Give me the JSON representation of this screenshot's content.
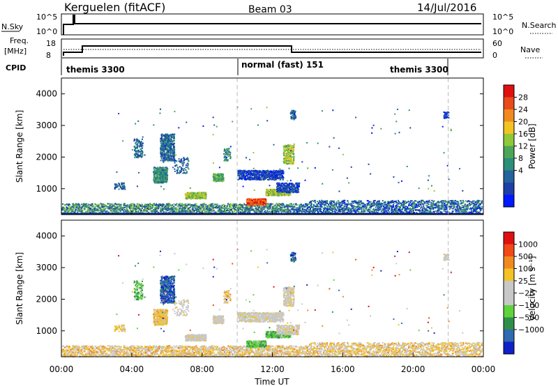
{
  "header": {
    "station": "Kerguelen (fitACF)",
    "beam": "Beam 03",
    "date": "14/Jul/2016"
  },
  "colors": {
    "power_scale": [
      "#0019ff",
      "#1f3fa8",
      "#24639b",
      "#2b8f7a",
      "#4da55a",
      "#8fc93a",
      "#f3c323",
      "#f08a20",
      "#e94b1b",
      "#e01010"
    ],
    "velocity_scale": [
      "#e01010",
      "#f04a18",
      "#f08a20",
      "#f3c323",
      "#c8c8c8",
      "#c8c8c8",
      "#5fd43a",
      "#2f8f4a",
      "#2e6ab0",
      "#1020c8"
    ],
    "dashed_line": "#bbbbbb"
  },
  "panels": {
    "nsky_label": "N.Sky",
    "nsky_ticks": [
      "10^5",
      "10^0"
    ],
    "nsearch_label": "N.Search",
    "nsearch_ticks": [
      "10^5",
      "10^0"
    ],
    "freq_label": "Freq.",
    "freq_unit": "[MHz]",
    "freq_ticks": [
      "18",
      "8"
    ],
    "nave_label": "Nave",
    "nave_ticks": [
      "60",
      "0"
    ],
    "cpid_label": "CPID",
    "cpid_segments": [
      "themis 3300",
      "normal (fast) 151",
      "themis 3300"
    ]
  },
  "chart_data": [
    {
      "type": "heatmap",
      "name": "power",
      "ylabel": "Slant Range [km]",
      "yticks": [
        1000,
        2000,
        3000,
        4000
      ],
      "ylim": [
        180,
        4500
      ],
      "xlim": [
        0,
        24
      ],
      "xticks": [
        "00:00",
        "04:00",
        "08:00",
        "12:00",
        "16:00",
        "20:00",
        "00:00"
      ],
      "colorbar_label": "Power [dB]",
      "colorbar_ticks": [
        "28",
        "24",
        "20",
        "16",
        "12",
        "8",
        "4"
      ],
      "colorbar_range": [
        0,
        30
      ],
      "dashed_times": [
        10,
        22
      ]
    },
    {
      "type": "heatmap",
      "name": "velocity",
      "ylabel": "Slant Range [km]",
      "yticks": [
        1000,
        2000,
        3000,
        4000
      ],
      "ylim": [
        180,
        4500
      ],
      "xlim": [
        0,
        24
      ],
      "xticks": [
        "00:00",
        "04:00",
        "08:00",
        "12:00",
        "16:00",
        "20:00",
        "00:00"
      ],
      "xlabel": "Time UT",
      "colorbar_label": "Velocity [m s⁻¹]",
      "colorbar_ticks": [
        "1000",
        "500",
        "100",
        "25",
        "−25",
        "−100",
        "−500",
        "−1000"
      ],
      "dashed_times": [
        10,
        22
      ]
    }
  ]
}
